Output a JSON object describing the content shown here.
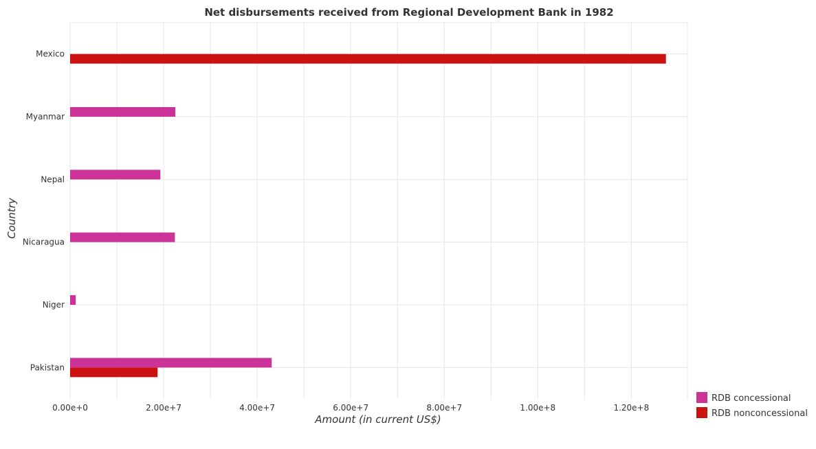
{
  "title": "Net disbursements received from Regional Development Bank in 1982",
  "colors": {
    "concessional": "#cc3399",
    "nonconcessional": "#cc1111",
    "grid": "#e6e6e6",
    "text": "#333333"
  },
  "chart_data": {
    "type": "bar",
    "orientation": "horizontal",
    "title": "Net disbursements received from Regional Development Bank in 1982",
    "xlabel": "Amount (in current US$)",
    "ylabel": "Country",
    "xlim": [
      0,
      132000000
    ],
    "x_ticks": [
      0,
      20000000,
      40000000,
      60000000,
      80000000,
      100000000,
      120000000
    ],
    "x_tick_labels": [
      "0.00e+0",
      "2.00e+7",
      "4.00e+7",
      "6.00e+7",
      "8.00e+7",
      "1.00e+8",
      "1.20e+8"
    ],
    "categories": [
      "Mexico",
      "Myanmar",
      "Nepal",
      "Nicaragua",
      "Niger",
      "Pakistan"
    ],
    "series": [
      {
        "name": "RDB concessional",
        "color_key": "concessional",
        "values": [
          0,
          22500000,
          19300000,
          22400000,
          1200000,
          43100000
        ]
      },
      {
        "name": "RDB nonconcessional",
        "color_key": "nonconcessional",
        "values": [
          127400000,
          0,
          0,
          0,
          0,
          18700000
        ]
      }
    ],
    "grid": true,
    "legend_position": "bottom-right"
  }
}
